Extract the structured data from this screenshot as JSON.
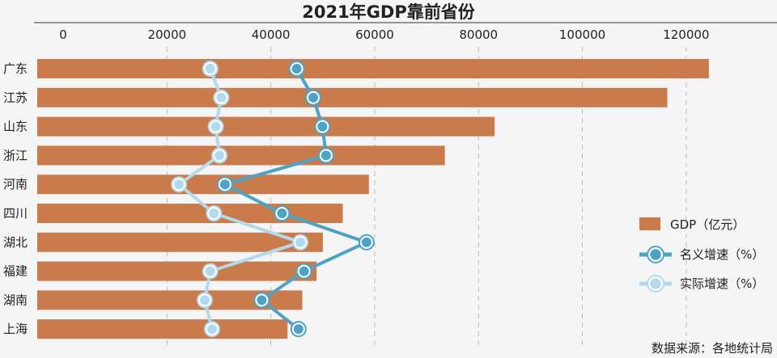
{
  "chart_data": {
    "type": "bar",
    "title": "2021年GDP靠前省份",
    "categories": [
      "广东",
      "江苏",
      "山东",
      "浙江",
      "河南",
      "四川",
      "湖北",
      "福建",
      "湖南",
      "上海"
    ],
    "x_ticks": [
      "0",
      "20000",
      "40000",
      "60000",
      "80000",
      "100000",
      "120000"
    ],
    "xlim": [
      0,
      130000
    ],
    "grid": "vertical-dashed",
    "legend_position": "right",
    "series": [
      {
        "name": "GDP（亿元）",
        "kind": "bar",
        "color": "#c97b4b",
        "values": [
          124369,
          116364,
          83095,
          73516,
          58887,
          53851,
          50013,
          48810,
          46063,
          43215
        ]
      },
      {
        "name": "名义增速（%）",
        "kind": "line",
        "color": "#4ea3c4",
        "values": [
          12.7,
          13.6,
          14.1,
          14.3,
          8.8,
          11.9,
          16.5,
          13.1,
          10.8,
          12.8
        ]
      },
      {
        "name": "实际增速（%）",
        "kind": "line",
        "color": "#b2d9ec",
        "values": [
          8.0,
          8.6,
          8.3,
          8.5,
          6.3,
          8.2,
          12.9,
          8.0,
          7.7,
          8.1
        ]
      }
    ],
    "source": "数据来源：各地统计局"
  }
}
